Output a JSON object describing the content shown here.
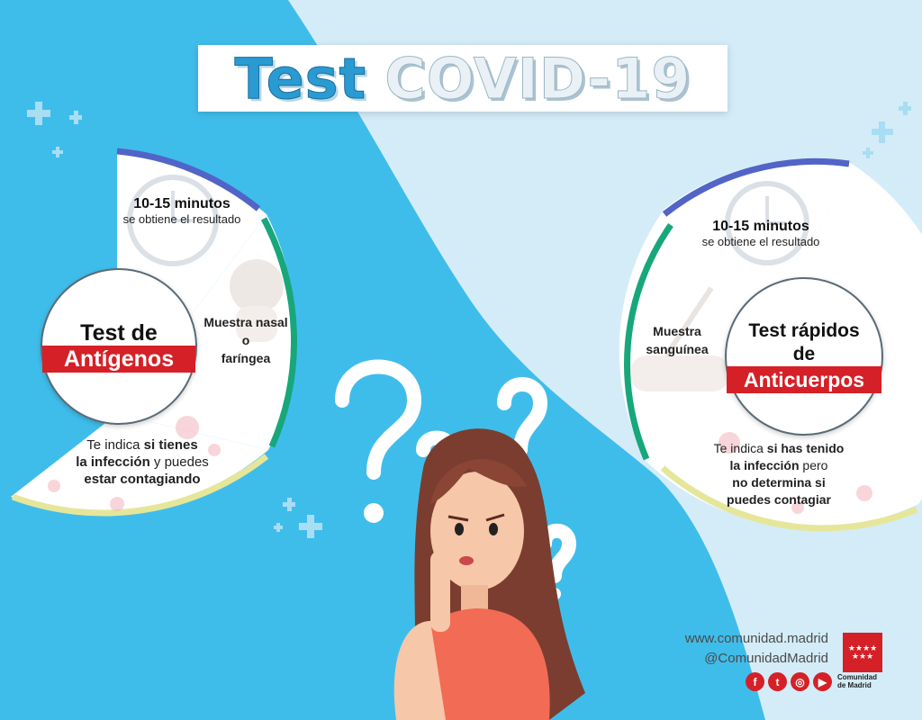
{
  "title": {
    "part1": "Test",
    "part2": "COVID-19"
  },
  "antigenos": {
    "circle_line1": "Test de",
    "circle_band": "Antígenos",
    "time_title": "10-15 minutos",
    "time_sub": "se obtiene el resultado",
    "sample_line1": "Muestra nasal",
    "sample_line2": "o",
    "sample_line3": "faríngea",
    "desc_1": "Te indica ",
    "desc_2": "si tienes",
    "desc_3": "la infección",
    "desc_4": " y puedes",
    "desc_5": "estar contagiando"
  },
  "anticuerpos": {
    "circle_line1": "Test rápidos",
    "circle_line2": "de",
    "circle_band": "Anticuerpos",
    "time_title": "10-15 minutos",
    "time_sub": "se obtiene el resultado",
    "sample_line1": "Muestra",
    "sample_line2": "sanguínea",
    "desc_1": "Te indica ",
    "desc_2": "si has tenido",
    "desc_3": "la infección",
    "desc_4": " pero",
    "desc_5": "no determina si",
    "desc_6": "puedes contagiar"
  },
  "footer": {
    "website": "www.comunidad.madrid",
    "handle": "@ComunidadMadrid",
    "social_icons": [
      "facebook-icon",
      "twitter-icon",
      "instagram-icon",
      "youtube-icon"
    ],
    "logo_line1": "Comunidad",
    "logo_line2": "de Madrid"
  },
  "colors": {
    "sky": "#3fbdea",
    "pale": "#d3ecf8",
    "blue_arc": "#5264c8",
    "green_arc": "#17a77a",
    "yellow_arc": "#e6e69a",
    "red": "#d62027"
  }
}
